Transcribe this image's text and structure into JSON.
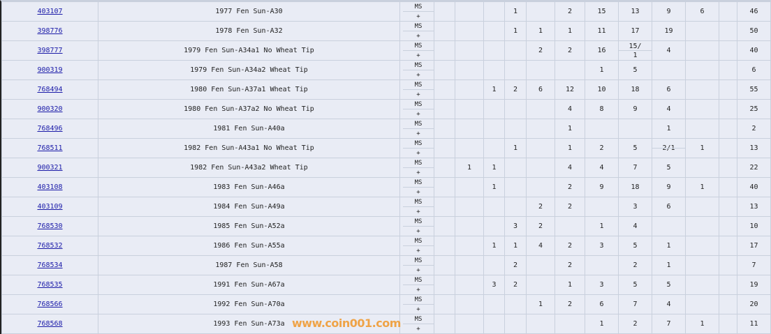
{
  "ms_label": "MS",
  "plus_label": "+",
  "watermark": "www.coin001.com",
  "rows": [
    {
      "id": "403107",
      "name": "1977 Fen Sun-A30",
      "counts": [
        "",
        "",
        "",
        "1",
        "",
        "2",
        "15",
        "13",
        "9",
        "6",
        "",
        "46"
      ]
    },
    {
      "id": "398776",
      "name": "1978 Fen Sun-A32",
      "counts": [
        "",
        "",
        "",
        "1",
        "1",
        "1",
        "11",
        "17",
        "19",
        "",
        "",
        "50"
      ]
    },
    {
      "id": "398777",
      "name": "1979 Fen Sun-A34a1 No Wheat Tip",
      "counts": [
        "",
        "",
        "",
        "",
        "2",
        "2",
        "16",
        "15/1",
        "4",
        "",
        "",
        "40"
      ]
    },
    {
      "id": "900319",
      "name": "1979 Fen Sun-A34a2 Wheat Tip",
      "counts": [
        "",
        "",
        "",
        "",
        "",
        "",
        "1",
        "5",
        "",
        "",
        "",
        "6"
      ]
    },
    {
      "id": "768494",
      "name": "1980 Fen Sun-A37a1 Wheat Tip",
      "counts": [
        "",
        "",
        "1",
        "2",
        "6",
        "12",
        "10",
        "18",
        "6",
        "",
        "",
        "55"
      ]
    },
    {
      "id": "900320",
      "name": "1980 Fen Sun-A37a2 No Wheat Tip",
      "counts": [
        "",
        "",
        "",
        "",
        "",
        "4",
        "8",
        "9",
        "4",
        "",
        "",
        "25"
      ]
    },
    {
      "id": "768496",
      "name": "1981 Fen Sun-A40a",
      "counts": [
        "",
        "",
        "",
        "",
        "",
        "1",
        "",
        "",
        "1",
        "",
        "",
        "2"
      ]
    },
    {
      "id": "768511",
      "name": "1982 Fen Sun-A43a1 No Wheat Tip",
      "counts": [
        "",
        "",
        "",
        "1",
        "",
        "1",
        "2",
        "5",
        "2/1",
        "1",
        "",
        "13"
      ]
    },
    {
      "id": "900321",
      "name": "1982 Fen Sun-A43a2 Wheat Tip",
      "counts": [
        "",
        "1",
        "1",
        "",
        "",
        "4",
        "4",
        "7",
        "5",
        "",
        "",
        "22"
      ]
    },
    {
      "id": "403108",
      "name": "1983 Fen Sun-A46a",
      "counts": [
        "",
        "",
        "1",
        "",
        "",
        "2",
        "9",
        "18",
        "9",
        "1",
        "",
        "40"
      ]
    },
    {
      "id": "403109",
      "name": "1984 Fen Sun-A49a",
      "counts": [
        "",
        "",
        "",
        "",
        "2",
        "2",
        "",
        "3",
        "6",
        "",
        "",
        "13"
      ]
    },
    {
      "id": "768530",
      "name": "1985 Fen Sun-A52a",
      "counts": [
        "",
        "",
        "",
        "3",
        "2",
        "",
        "1",
        "4",
        "",
        "",
        "",
        "10"
      ]
    },
    {
      "id": "768532",
      "name": "1986 Fen Sun-A55a",
      "counts": [
        "",
        "",
        "1",
        "1",
        "4",
        "2",
        "3",
        "5",
        "1",
        "",
        "",
        "17"
      ]
    },
    {
      "id": "768534",
      "name": "1987 Fen Sun-A58",
      "counts": [
        "",
        "",
        "",
        "2",
        "",
        "2",
        "",
        "2",
        "1",
        "",
        "",
        "7"
      ]
    },
    {
      "id": "768535",
      "name": "1991 Fen Sun-A67a",
      "counts": [
        "",
        "",
        "3",
        "2",
        "",
        "1",
        "3",
        "5",
        "5",
        "",
        "",
        "19"
      ]
    },
    {
      "id": "768566",
      "name": "1992 Fen Sun-A70a",
      "counts": [
        "",
        "",
        "",
        "",
        "1",
        "2",
        "6",
        "7",
        "4",
        "",
        "",
        "20"
      ]
    },
    {
      "id": "768568",
      "name": "1993 Fen Sun-A73a",
      "counts": [
        "",
        "",
        "",
        "",
        "",
        "",
        "1",
        "2",
        "7",
        "1",
        "",
        "11"
      ]
    }
  ]
}
